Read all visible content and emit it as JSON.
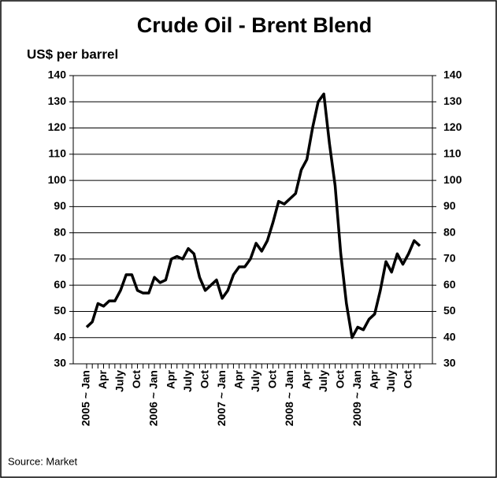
{
  "chart_data": {
    "type": "line",
    "title": "Crude Oil - Brent Blend",
    "y_label": "US$ per barrel",
    "source": "Source: Market",
    "categories": [
      "2005 ~ Jan",
      null,
      null,
      "Apr",
      null,
      null,
      "July",
      null,
      null,
      "Oct",
      null,
      null,
      "2006 ~ Jan",
      null,
      null,
      "Apr",
      null,
      null,
      "July",
      null,
      null,
      "Oct",
      null,
      null,
      "2007 ~ Jan",
      null,
      null,
      "Apr",
      null,
      null,
      "July",
      null,
      null,
      "Oct",
      null,
      null,
      "2008 ~ Jan",
      null,
      null,
      "Apr",
      null,
      null,
      "July",
      null,
      null,
      "Oct",
      null,
      null,
      "2009 ~ Jan",
      null,
      null,
      "Apr",
      null,
      null,
      "July",
      null,
      null,
      "Oct",
      null,
      null
    ],
    "series": [
      {
        "name": "Brent",
        "color": "#000000",
        "values": [
          44,
          46,
          53,
          52,
          54,
          54,
          58,
          64,
          64,
          58,
          57,
          57,
          63,
          61,
          62,
          70,
          71,
          70,
          74,
          72,
          63,
          58,
          60,
          62,
          55,
          58,
          64,
          67,
          67,
          70,
          76,
          73,
          77,
          84,
          92,
          91,
          93,
          95,
          104,
          108,
          120,
          130,
          133,
          114,
          98,
          72,
          53,
          40,
          44,
          43,
          47,
          49,
          58,
          69,
          65,
          72,
          68,
          72,
          77,
          75
        ]
      }
    ],
    "ylim": [
      30,
      140
    ],
    "yticks": [
      30,
      40,
      50,
      60,
      70,
      80,
      90,
      100,
      110,
      120,
      130,
      140
    ],
    "grid": true
  }
}
